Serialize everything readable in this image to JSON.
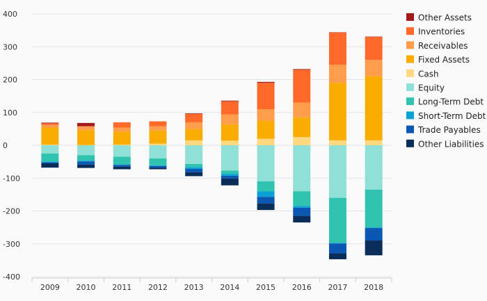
{
  "chart_data": {
    "type": "bar",
    "stacked": true,
    "categories": [
      "2009",
      "2010",
      "2011",
      "2012",
      "2013",
      "2014",
      "2015",
      "2016",
      "2017",
      "2018"
    ],
    "ylim": [
      -400,
      400
    ],
    "yticks": [
      -400,
      -300,
      -200,
      -100,
      0,
      100,
      200,
      300,
      400
    ],
    "grid": true,
    "legend_position": "right",
    "series": [
      {
        "name": "Other Assets",
        "color": "#a31a1a",
        "values": [
          2,
          10,
          0,
          0,
          2,
          2,
          3,
          2,
          1,
          1
        ]
      },
      {
        "name": "Inventories",
        "color": "#ff6a2b",
        "values": [
          5,
          0,
          16,
          15,
          25,
          40,
          80,
          100,
          98,
          70
        ]
      },
      {
        "name": "Receivables",
        "color": "#ff9d4d",
        "values": [
          8,
          12,
          12,
          13,
          20,
          30,
          35,
          45,
          55,
          50
        ]
      },
      {
        "name": "Fixed Assets",
        "color": "#f9ad00",
        "values": [
          52,
          45,
          40,
          40,
          35,
          50,
          55,
          60,
          175,
          195
        ]
      },
      {
        "name": "Cash",
        "color": "#ffd87f",
        "values": [
          2,
          1,
          2,
          5,
          15,
          14,
          20,
          25,
          15,
          15
        ]
      },
      {
        "name": "Equity",
        "color": "#8fe0d6",
        "values": [
          -25,
          -30,
          -35,
          -40,
          -57,
          -77,
          -110,
          -140,
          -160,
          -135
        ]
      },
      {
        "name": "Long-Term Debt",
        "color": "#30c4b0",
        "values": [
          -25,
          -17,
          -23,
          -21,
          -10,
          -10,
          -30,
          -45,
          -137,
          -115
        ]
      },
      {
        "name": "Short-Term Debt",
        "color": "#0aa2d4",
        "values": [
          -2,
          -2,
          -2,
          -2,
          -5,
          -6,
          -17,
          -5,
          -2,
          -2
        ]
      },
      {
        "name": "Trade Payables",
        "color": "#0a57b4",
        "values": [
          -3,
          -10,
          -5,
          -5,
          -10,
          -8,
          -20,
          -25,
          -30,
          -38
        ]
      },
      {
        "name": "Other Liabilities",
        "color": "#0b2d5a",
        "values": [
          -13,
          -10,
          -8,
          -5,
          -12,
          -21,
          -20,
          -20,
          -18,
          -45
        ]
      }
    ]
  }
}
